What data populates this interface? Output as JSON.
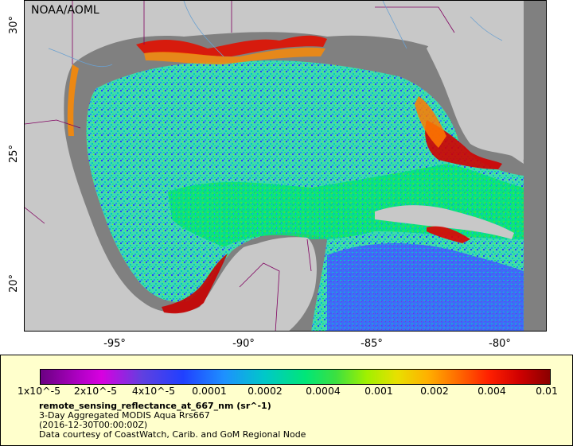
{
  "map": {
    "credit": "NOAA/AOML",
    "y_ticks": [
      "30°",
      "25°",
      "20°"
    ],
    "x_ticks": [
      "-95°",
      "-90°",
      "-85°",
      "-80°"
    ],
    "colors": {
      "land": "#c8c8c8",
      "no_data": "#808080",
      "ocean_low": "#2040ff",
      "ocean_mid": "#00e678",
      "coastal_high": "#d00000"
    }
  },
  "legend": {
    "colorbar_ticks": [
      "1x10^-5",
      "2x10^-5",
      "4x10^-5",
      "0.0001",
      "0.0002",
      "0.0004",
      "0.001",
      "0.002",
      "0.004",
      "0.01"
    ],
    "variable": "remote_sensing_reflectance_at_667_nm (sr^-1)",
    "product": "3-Day Aggregated MODIS Aqua Rrs667",
    "date": "(2016-12-30T00:00:00Z)",
    "source": "Data courtesy of CoastWatch, Carib. and GoM Regional Node"
  }
}
